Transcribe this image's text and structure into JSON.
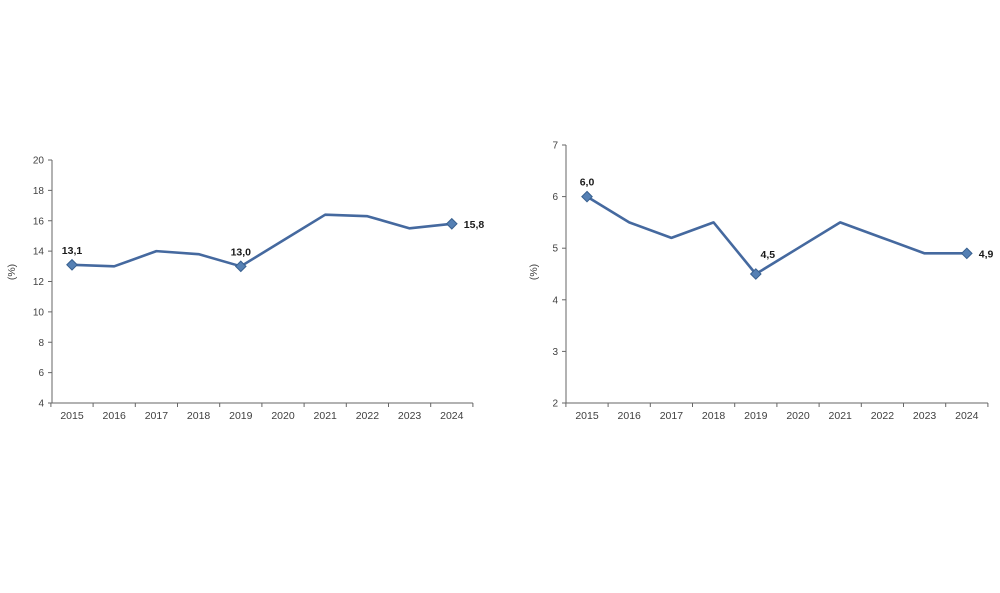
{
  "page": {
    "background_color": "#ffffff",
    "description": "Two line charts side by side showing percentage series by year, 2015-2024"
  },
  "chart_data": [
    {
      "id": "left-chart",
      "type": "line",
      "title": "",
      "xlabel": "",
      "ylabel": "(%)",
      "categories": [
        "2015",
        "2016",
        "2017",
        "2018",
        "2019",
        "2020",
        "2021",
        "2022",
        "2023",
        "2024"
      ],
      "series": [
        {
          "name": "series-1",
          "values": [
            13.1,
            13.0,
            14.0,
            13.8,
            13.0,
            14.7,
            16.4,
            16.3,
            15.5,
            15.8
          ]
        }
      ],
      "ylim": [
        4,
        20
      ],
      "y_ticks": [
        4,
        6,
        8,
        10,
        12,
        14,
        16,
        18,
        20
      ],
      "grid": false,
      "legend": "none",
      "point_labels": [
        {
          "category": "2015",
          "text": "13,1",
          "placement": "above"
        },
        {
          "category": "2019",
          "text": "13,0",
          "placement": "above"
        },
        {
          "category": "2024",
          "text": "15,8",
          "placement": "right"
        }
      ],
      "colors": {
        "line": "#45699f",
        "marker_fill": "#5580b4",
        "marker_stroke": "#38608f",
        "axis": "#666666",
        "tick_text": "#404040",
        "label_text": "#1a1a1a"
      }
    },
    {
      "id": "right-chart",
      "type": "line",
      "title": "",
      "xlabel": "",
      "ylabel": "(%)",
      "categories": [
        "2015",
        "2016",
        "2017",
        "2018",
        "2019",
        "2020",
        "2021",
        "2022",
        "2023",
        "2024"
      ],
      "series": [
        {
          "name": "series-1",
          "values": [
            6.0,
            5.5,
            5.2,
            5.5,
            4.5,
            5.0,
            5.5,
            5.2,
            4.9,
            4.9
          ]
        }
      ],
      "ylim": [
        2,
        7
      ],
      "y_ticks": [
        2,
        3,
        4,
        5,
        6,
        7
      ],
      "grid": false,
      "legend": "none",
      "point_labels": [
        {
          "category": "2015",
          "text": "6,0",
          "placement": "above"
        },
        {
          "category": "2019",
          "text": "4,5",
          "placement": "above-right"
        },
        {
          "category": "2024",
          "text": "4,9",
          "placement": "right"
        }
      ],
      "colors": {
        "line": "#45699f",
        "marker_fill": "#5580b4",
        "marker_stroke": "#38608f",
        "axis": "#666666",
        "tick_text": "#404040",
        "label_text": "#1a1a1a"
      }
    }
  ]
}
